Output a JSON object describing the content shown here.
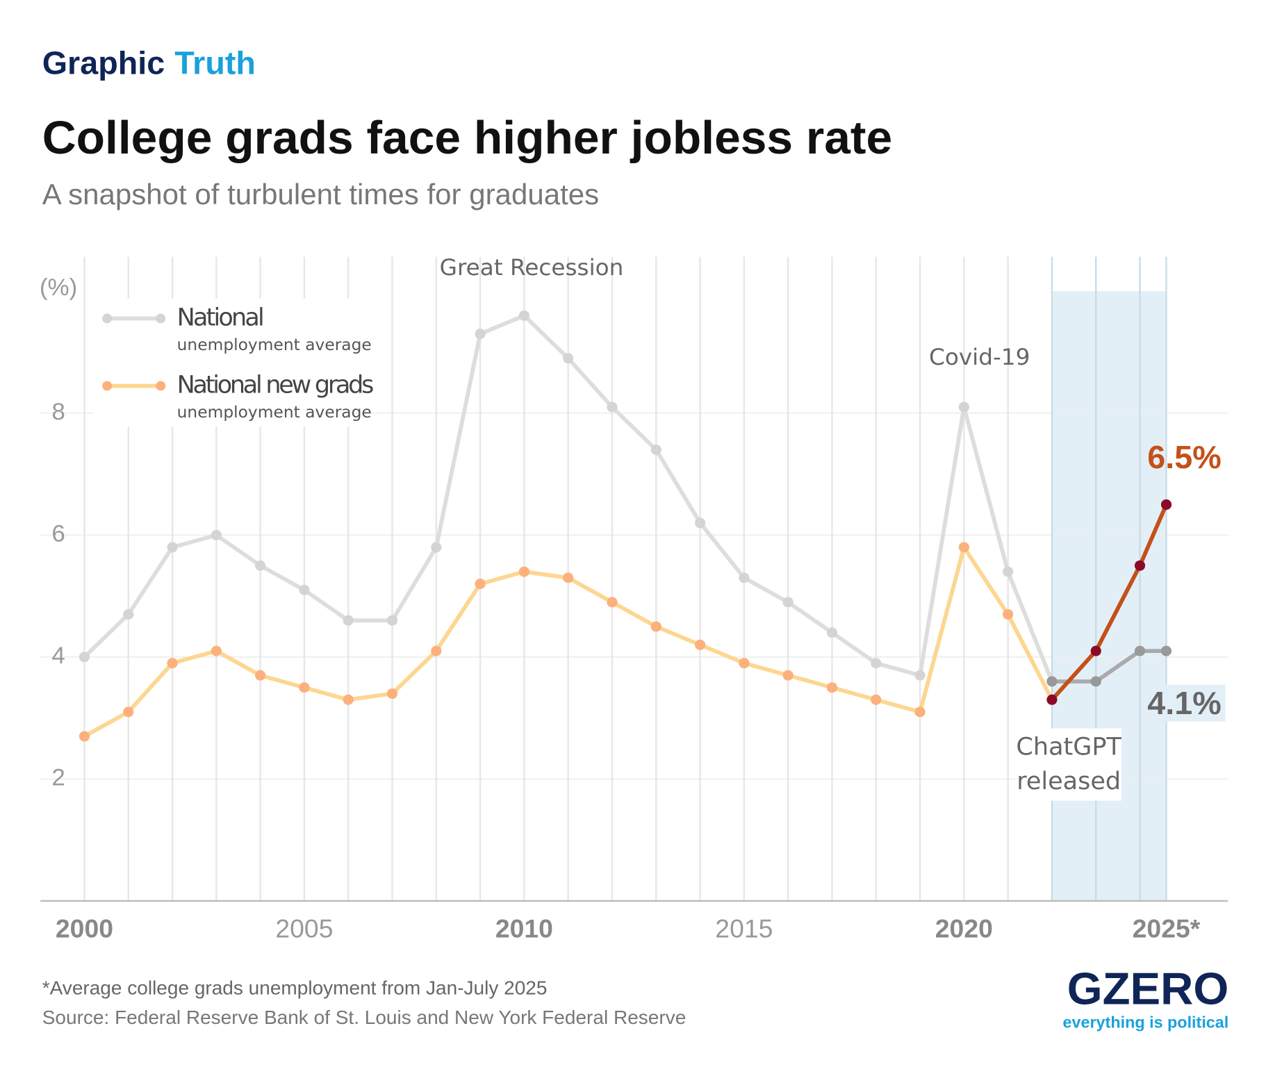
{
  "chart_data": {
    "type": "line",
    "kicker": [
      "Graphic",
      "Truth"
    ],
    "title": "College grads face higher jobless rate",
    "subtitle": "A snapshot of turbulent times for graduates",
    "y_label": "(%)",
    "x": [
      2000,
      2001,
      2002,
      2003,
      2004,
      2005,
      2006,
      2007,
      2008,
      2009,
      2010,
      2011,
      2012,
      2013,
      2014,
      2015,
      2016,
      2017,
      2018,
      2019,
      2020,
      2021,
      2022,
      2023,
      2024,
      2024.6
    ],
    "xlim": [
      1999,
      2026
    ],
    "xticks": [
      2000,
      2005,
      2010,
      2015,
      2020,
      {
        "value": 2024.6,
        "label": "2025*"
      }
    ],
    "ylim": [
      0,
      10
    ],
    "yticks": [
      2,
      4,
      6,
      8
    ],
    "grid": true,
    "highlight_from": 2022,
    "highlight_color": "#e3eff7",
    "series": [
      {
        "name": "National",
        "subtitle": "unemployment average",
        "color": "#dddddd",
        "dot_color": "#d4d4d4",
        "highlight_color": "#aaaaaa",
        "highlight_dot_color": "#999999",
        "end_label": "4.1%",
        "end_label_color": "#666666",
        "values": [
          4.0,
          4.7,
          5.8,
          6.0,
          5.5,
          5.1,
          4.6,
          4.6,
          5.8,
          9.3,
          9.6,
          8.9,
          8.1,
          7.4,
          6.2,
          5.3,
          4.9,
          4.4,
          3.9,
          3.7,
          8.1,
          5.4,
          3.6,
          3.6,
          4.1,
          4.1
        ]
      },
      {
        "name": "National new grads",
        "subtitle": "unemployment average",
        "color": "#fdd690",
        "dot_color": "#fcb07c",
        "highlight_color": "#c4501a",
        "highlight_dot_color": "#8b0a2a",
        "end_label": "6.5%",
        "end_label_color": "#c4501a",
        "values": [
          2.7,
          3.1,
          3.9,
          4.1,
          3.7,
          3.5,
          3.3,
          3.4,
          4.1,
          5.2,
          5.4,
          5.3,
          4.9,
          4.5,
          4.2,
          3.9,
          3.7,
          3.5,
          3.3,
          3.1,
          5.8,
          4.7,
          3.3,
          4.1,
          5.5,
          6.5
        ]
      }
    ],
    "annotations": [
      "Great Recession",
      "Covid-19",
      [
        "ChatGPT",
        "released"
      ]
    ],
    "footnote": "*Average college grads unemployment from Jan-July 2025",
    "source": "Source: Federal Reserve Bank of St. Louis and New York Federal Reserve",
    "logo": "GZERO",
    "tagline": "everything is political"
  }
}
